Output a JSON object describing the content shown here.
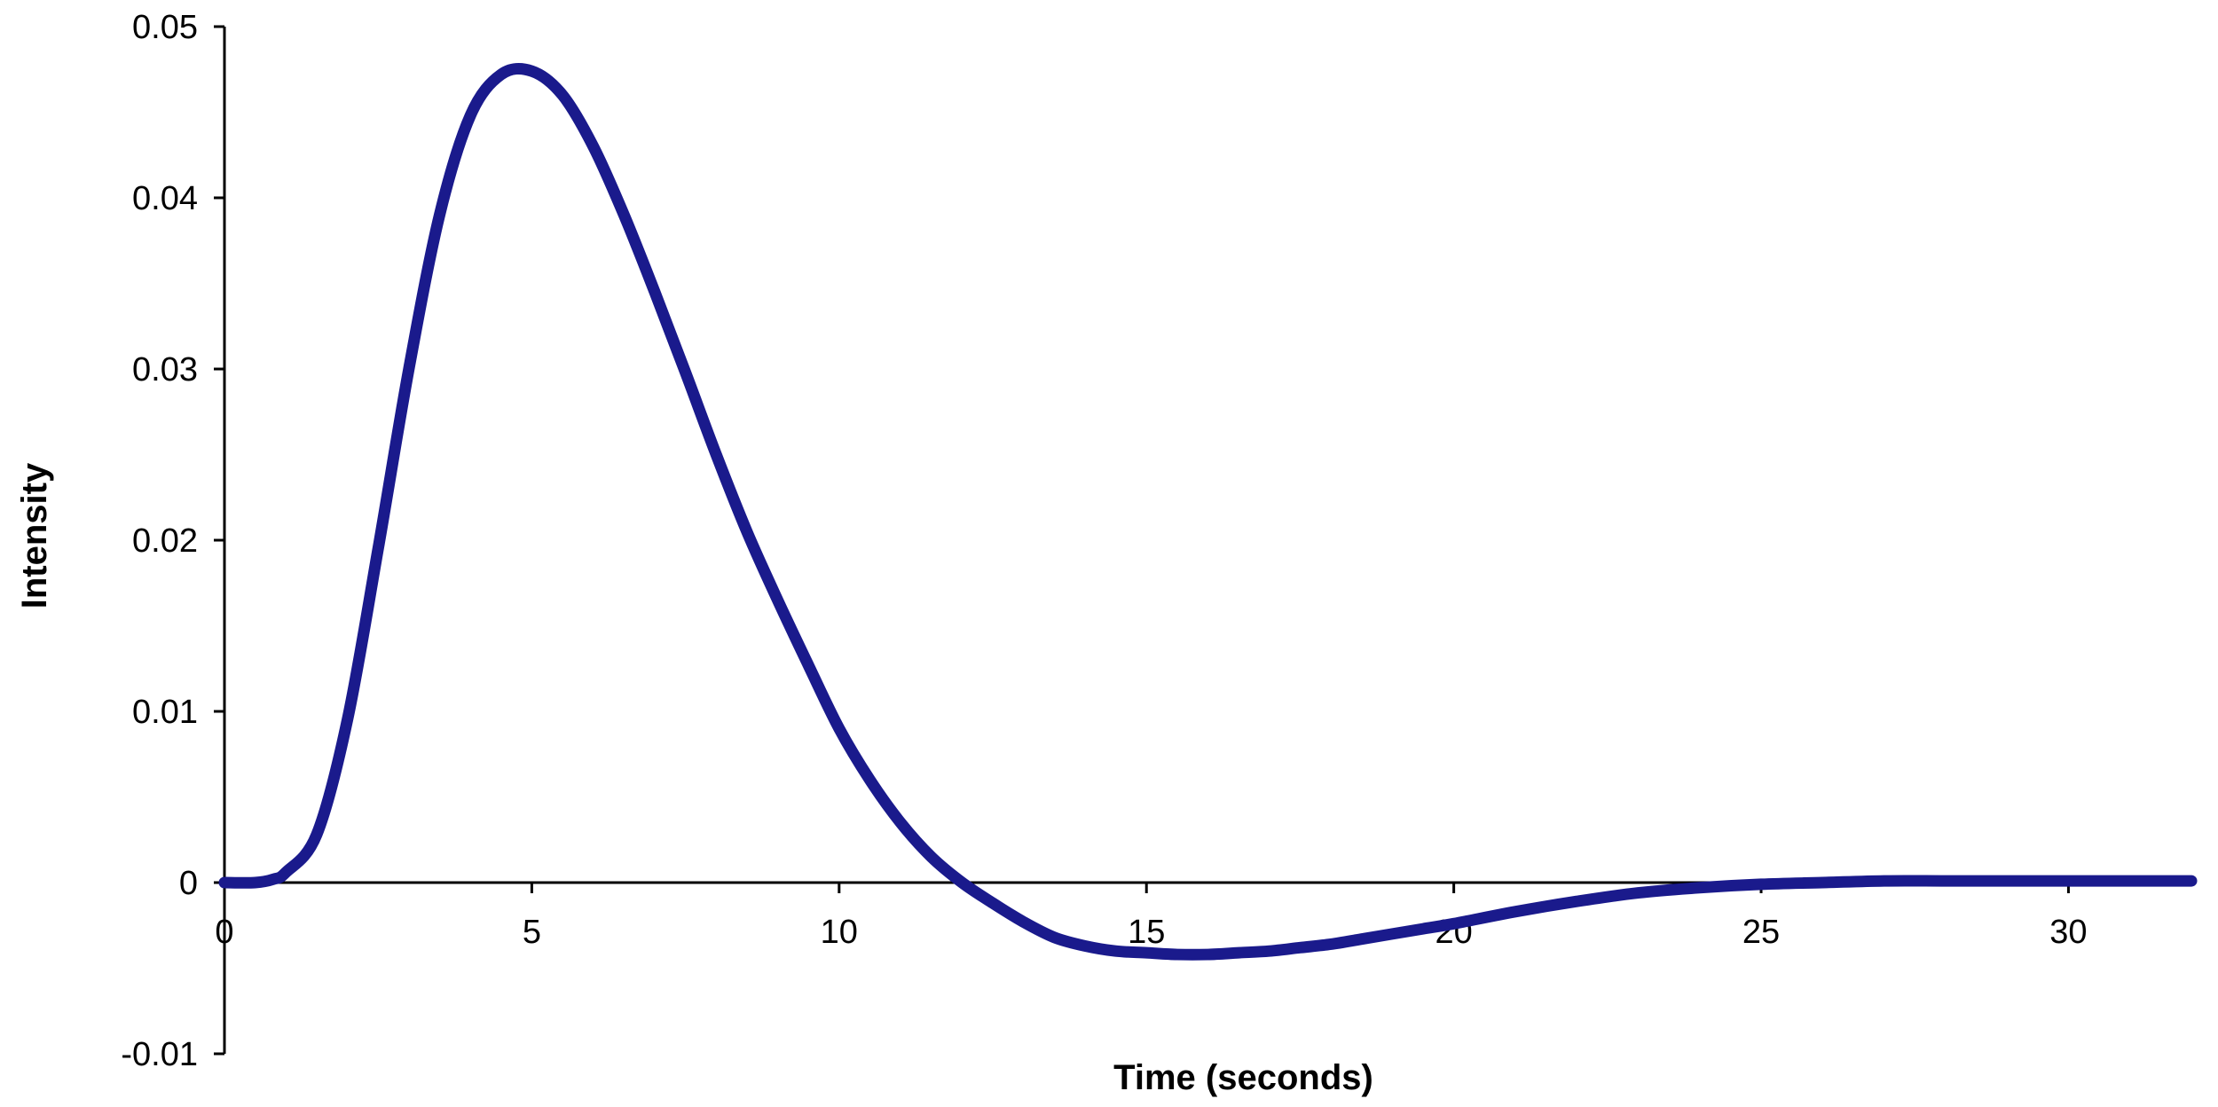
{
  "chart_data": {
    "type": "line",
    "title": "",
    "xlabel": "Time (seconds)",
    "ylabel": "Intensity",
    "xlim": [
      0,
      32
    ],
    "ylim": [
      -0.01,
      0.05
    ],
    "xticks": [
      0,
      5,
      10,
      15,
      20,
      25,
      30
    ],
    "xtick_labels": [
      "0",
      "5",
      "10",
      "15",
      "20",
      "25",
      "30"
    ],
    "yticks": [
      -0.01,
      0,
      0.01,
      0.02,
      0.03,
      0.04,
      0.05
    ],
    "ytick_labels": [
      "-0.01",
      "0",
      "0.01",
      "0.02",
      "0.03",
      "0.04",
      "0.05"
    ],
    "grid": false,
    "legend": "none",
    "series": [
      {
        "color": "#1a1a8c",
        "x": [
          0,
          0.5,
          0.8,
          1,
          1.5,
          2,
          2.5,
          3,
          3.5,
          4,
          4.5,
          5,
          5.5,
          6,
          6.5,
          7,
          7.5,
          8,
          8.5,
          9,
          9.5,
          10,
          10.5,
          11,
          11.5,
          12,
          12.5,
          13,
          13.5,
          14,
          14.5,
          15,
          15.5,
          16,
          16.5,
          17,
          17.5,
          18,
          18.5,
          19,
          19.5,
          20,
          21,
          22,
          23,
          24,
          25,
          26,
          27,
          28,
          29,
          30,
          31,
          32
        ],
        "y": [
          0,
          0,
          0.0002,
          0.0006,
          0.0028,
          0.0095,
          0.0195,
          0.03,
          0.039,
          0.0448,
          0.0472,
          0.0474,
          0.046,
          0.043,
          0.039,
          0.0345,
          0.0298,
          0.025,
          0.0205,
          0.0165,
          0.0127,
          0.009,
          0.006,
          0.0035,
          0.0015,
          0.0,
          -0.0012,
          -0.0023,
          -0.0032,
          -0.0037,
          -0.004,
          -0.0041,
          -0.0042,
          -0.0042,
          -0.0041,
          -0.004,
          -0.0038,
          -0.0036,
          -0.0033,
          -0.003,
          -0.0027,
          -0.0024,
          -0.0017,
          -0.0011,
          -0.0006,
          -0.0003,
          -0.0001,
          0.0,
          0.0001,
          0.0001,
          0.0001,
          0.0001,
          0.0001,
          0.0001
        ]
      }
    ]
  }
}
